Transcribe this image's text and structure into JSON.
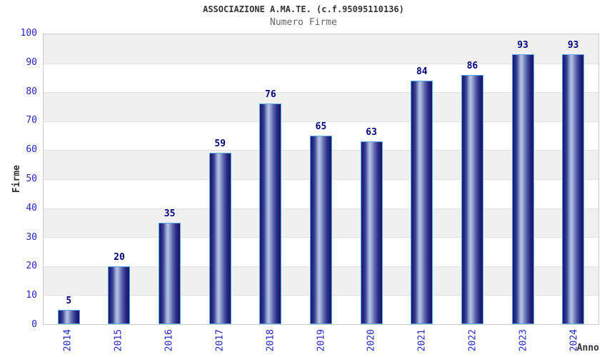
{
  "header": {
    "title": "ASSOCIAZIONE A.MA.TE. (c.f.95095110136)",
    "subtitle": "Numero Firme"
  },
  "chart_data": {
    "type": "bar",
    "title": "ASSOCIAZIONE A.MA.TE. (c.f.95095110136)",
    "subtitle": "Numero Firme",
    "categories": [
      "2014",
      "2015",
      "2016",
      "2017",
      "2018",
      "2019",
      "2020",
      "2021",
      "2022",
      "2023",
      "2024"
    ],
    "values": [
      5,
      20,
      35,
      59,
      76,
      65,
      63,
      84,
      86,
      93,
      93
    ],
    "xlabel": "Anno",
    "ylabel": "Firme",
    "ylim": [
      0,
      100
    ],
    "ytick_step": 10,
    "yticks": [
      0,
      10,
      20,
      30,
      40,
      50,
      60,
      70,
      80,
      90,
      100
    ],
    "legend": "none",
    "grid": "alternating horizontal decade bands (gray on 10-20, 30-40, 50-60, 70-80, 90-100)",
    "colors": {
      "axis_label_blue": "#2424cc",
      "value_label_navy": "#00007a",
      "bar_edge_navy": "#17176b",
      "bar_highlight": "#b6c2e2",
      "bar_border_lightblue": "#5ea7e6",
      "band_gray": "#f0f0f0",
      "plot_border_gray": "#cccccc",
      "title_color": "#333333",
      "subtitle_color": "#666666"
    }
  }
}
